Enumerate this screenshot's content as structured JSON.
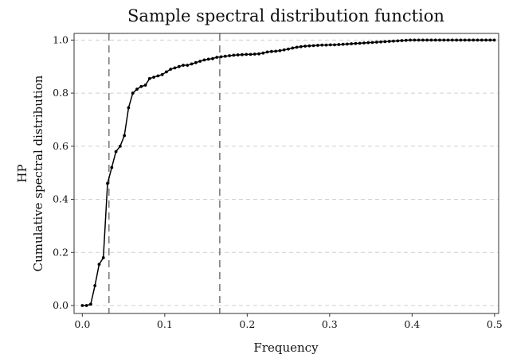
{
  "chart_data": {
    "type": "line",
    "title": "Sample spectral distribution function",
    "xlabel": "Frequency",
    "ylabel_lines": [
      "HP",
      "Cumulative spectral distribution"
    ],
    "xlim": [
      -0.01,
      0.505
    ],
    "ylim": [
      -0.03,
      1.025
    ],
    "xticks": [
      0.0,
      0.1,
      0.2,
      0.3,
      0.4,
      0.5
    ],
    "xtick_labels": [
      "0.0",
      "0.1",
      "0.2",
      "0.3",
      "0.4",
      "0.5"
    ],
    "yticks": [
      0.0,
      0.2,
      0.4,
      0.6,
      0.8,
      1.0
    ],
    "ytick_labels": [
      "0.0",
      "0.2",
      "0.4",
      "0.6",
      "0.8",
      "1.0"
    ],
    "grid": "horizontal",
    "vlines": [
      0.0323,
      0.1667
    ],
    "series": [
      {
        "points": [
          [
            0.0,
            0.0
          ],
          [
            0.0051,
            0.0
          ],
          [
            0.0102,
            0.005
          ],
          [
            0.0153,
            0.075
          ],
          [
            0.0204,
            0.155
          ],
          [
            0.0255,
            0.18
          ],
          [
            0.0306,
            0.46
          ],
          [
            0.0357,
            0.52
          ],
          [
            0.0408,
            0.58
          ],
          [
            0.0459,
            0.6
          ],
          [
            0.051,
            0.64
          ],
          [
            0.0561,
            0.745
          ],
          [
            0.0612,
            0.8
          ],
          [
            0.0663,
            0.815
          ],
          [
            0.0714,
            0.825
          ],
          [
            0.0765,
            0.83
          ],
          [
            0.0816,
            0.855
          ],
          [
            0.0867,
            0.86
          ],
          [
            0.0918,
            0.865
          ],
          [
            0.0969,
            0.87
          ],
          [
            0.102,
            0.88
          ],
          [
            0.1071,
            0.89
          ],
          [
            0.1122,
            0.895
          ],
          [
            0.1173,
            0.9
          ],
          [
            0.1224,
            0.905
          ],
          [
            0.1275,
            0.905
          ],
          [
            0.1326,
            0.91
          ],
          [
            0.1377,
            0.915
          ],
          [
            0.1428,
            0.92
          ],
          [
            0.1479,
            0.925
          ],
          [
            0.153,
            0.928
          ],
          [
            0.1581,
            0.93
          ],
          [
            0.1632,
            0.935
          ],
          [
            0.1683,
            0.937
          ],
          [
            0.1734,
            0.939
          ],
          [
            0.1785,
            0.941
          ],
          [
            0.1836,
            0.943
          ],
          [
            0.1887,
            0.944
          ],
          [
            0.1938,
            0.945
          ],
          [
            0.1989,
            0.946
          ],
          [
            0.204,
            0.946
          ],
          [
            0.2091,
            0.947
          ],
          [
            0.2142,
            0.948
          ],
          [
            0.2193,
            0.951
          ],
          [
            0.2244,
            0.955
          ],
          [
            0.2295,
            0.957
          ],
          [
            0.2346,
            0.958
          ],
          [
            0.2397,
            0.96
          ],
          [
            0.2448,
            0.963
          ],
          [
            0.2499,
            0.966
          ],
          [
            0.255,
            0.97
          ],
          [
            0.2601,
            0.973
          ],
          [
            0.2652,
            0.975
          ],
          [
            0.2703,
            0.977
          ],
          [
            0.2754,
            0.978
          ],
          [
            0.2805,
            0.979
          ],
          [
            0.2856,
            0.98
          ],
          [
            0.2907,
            0.981
          ],
          [
            0.2958,
            0.981
          ],
          [
            0.3009,
            0.982
          ],
          [
            0.306,
            0.982
          ],
          [
            0.3111,
            0.983
          ],
          [
            0.3162,
            0.984
          ],
          [
            0.3213,
            0.985
          ],
          [
            0.3264,
            0.986
          ],
          [
            0.3315,
            0.987
          ],
          [
            0.3366,
            0.988
          ],
          [
            0.3417,
            0.989
          ],
          [
            0.3468,
            0.99
          ],
          [
            0.3519,
            0.991
          ],
          [
            0.357,
            0.992
          ],
          [
            0.3621,
            0.993
          ],
          [
            0.3672,
            0.994
          ],
          [
            0.3723,
            0.995
          ],
          [
            0.3774,
            0.996
          ],
          [
            0.3825,
            0.997
          ],
          [
            0.3876,
            0.998
          ],
          [
            0.3927,
            0.999
          ],
          [
            0.3978,
            1.0
          ],
          [
            0.4029,
            1.0
          ],
          [
            0.408,
            1.0
          ],
          [
            0.4131,
            1.0
          ],
          [
            0.4182,
            1.0
          ],
          [
            0.4233,
            1.0
          ],
          [
            0.4284,
            1.0
          ],
          [
            0.4335,
            1.0
          ],
          [
            0.4386,
            1.0
          ],
          [
            0.4437,
            1.0
          ],
          [
            0.4488,
            1.0
          ],
          [
            0.4539,
            1.0
          ],
          [
            0.459,
            1.0
          ],
          [
            0.4641,
            1.0
          ],
          [
            0.4692,
            1.0
          ],
          [
            0.4743,
            1.0
          ],
          [
            0.4794,
            1.0
          ],
          [
            0.4845,
            1.0
          ],
          [
            0.4896,
            1.0
          ],
          [
            0.4947,
            1.0
          ],
          [
            0.4998,
            1.0
          ]
        ]
      }
    ]
  }
}
